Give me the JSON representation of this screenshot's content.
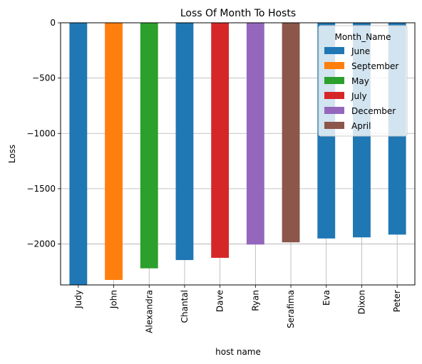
{
  "chart_data": {
    "type": "bar",
    "title": "Loss Of Month To Hosts",
    "xlabel": "host name",
    "ylabel": "Loss",
    "categories": [
      "Judy",
      "John",
      "Alexandra",
      "Chantal",
      "Dave",
      "Ryan",
      "Serafima",
      "Eva",
      "Dixon",
      "Peter"
    ],
    "series": [
      {
        "name": "June",
        "color": "#1f77b4",
        "values": [
          -2380,
          null,
          null,
          -2145,
          null,
          null,
          null,
          -1950,
          -1940,
          -1915
        ]
      },
      {
        "name": "September",
        "color": "#ff7f0e",
        "values": [
          null,
          -2325,
          null,
          null,
          null,
          null,
          null,
          null,
          null,
          null
        ]
      },
      {
        "name": "May",
        "color": "#2ca02c",
        "values": [
          null,
          null,
          -2220,
          null,
          null,
          null,
          null,
          null,
          null,
          null
        ]
      },
      {
        "name": "July",
        "color": "#d62728",
        "values": [
          null,
          null,
          null,
          null,
          -2125,
          null,
          null,
          null,
          null,
          null
        ]
      },
      {
        "name": "December",
        "color": "#9467bd",
        "values": [
          null,
          null,
          null,
          null,
          null,
          -2005,
          null,
          null,
          null,
          null
        ]
      },
      {
        "name": "April",
        "color": "#8c564b",
        "values": [
          null,
          null,
          null,
          null,
          null,
          null,
          -1985,
          null,
          null,
          null
        ]
      }
    ],
    "yticks": [
      0,
      -500,
      -1000,
      -1500,
      -2000
    ],
    "ylim": [
      -2370,
      0
    ],
    "grid": true,
    "legend": {
      "title": "Month_Name",
      "placement": "top-right"
    }
  }
}
